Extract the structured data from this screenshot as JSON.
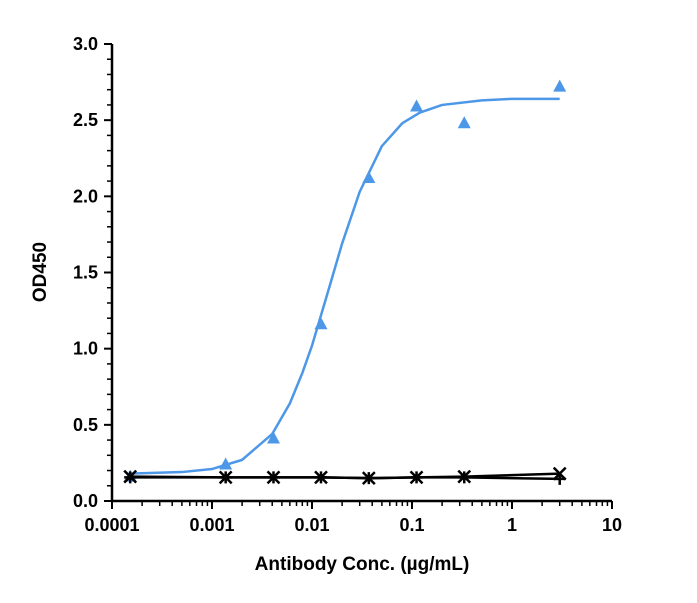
{
  "chart_data": {
    "type": "scatter",
    "xlabel": "Antibody Conc. (µg/mL)",
    "ylabel": "OD450",
    "xscale": "log",
    "xlim": [
      0.0001,
      10
    ],
    "xticks": [
      0.0001,
      0.001,
      0.01,
      0.1,
      1,
      10
    ],
    "ylim": [
      0,
      3
    ],
    "yticks": [
      {
        "value": 0,
        "label": "0.0"
      },
      0.5,
      {
        "value": 1,
        "label": "1.0"
      },
      1.5,
      {
        "value": 2,
        "label": "2.0"
      },
      2.5,
      {
        "value": 3,
        "label": "3.0"
      }
    ],
    "series": [
      {
        "color": "#4c97e8",
        "marker": "triangle",
        "connect": false,
        "x": [
          0.000152,
          0.00137,
          0.00412,
          0.0123,
          0.037,
          0.111,
          0.333,
          3
        ],
        "values": [
          0.16,
          0.24,
          0.41,
          1.16,
          2.12,
          2.59,
          2.48,
          2.72
        ]
      },
      {
        "color": "#4c97e8",
        "marker": "none",
        "connect": true,
        "x": [
          0.00015,
          0.0005,
          0.001,
          0.002,
          0.004,
          0.006,
          0.008,
          0.01,
          0.015,
          0.02,
          0.03,
          0.05,
          0.08,
          0.12,
          0.2,
          0.5,
          1,
          3
        ],
        "values": [
          0.18,
          0.19,
          0.21,
          0.27,
          0.44,
          0.64,
          0.84,
          1.02,
          1.41,
          1.69,
          2.03,
          2.33,
          2.48,
          2.55,
          2.6,
          2.63,
          2.64,
          2.64
        ]
      },
      {
        "color": "#000000",
        "marker": "x",
        "connect": true,
        "x": [
          0.000152,
          0.00137,
          0.00412,
          0.0123,
          0.037,
          0.111,
          0.333,
          3
        ],
        "values": [
          0.16,
          0.155,
          0.155,
          0.155,
          0.15,
          0.155,
          0.16,
          0.18
        ]
      },
      {
        "color": "#000000",
        "marker": "plus",
        "connect": true,
        "x": [
          0.000152,
          0.00137,
          0.00412,
          0.0123,
          0.037,
          0.111,
          0.333,
          3
        ],
        "values": [
          0.155,
          0.155,
          0.155,
          0.155,
          0.15,
          0.155,
          0.155,
          0.145
        ]
      }
    ]
  }
}
